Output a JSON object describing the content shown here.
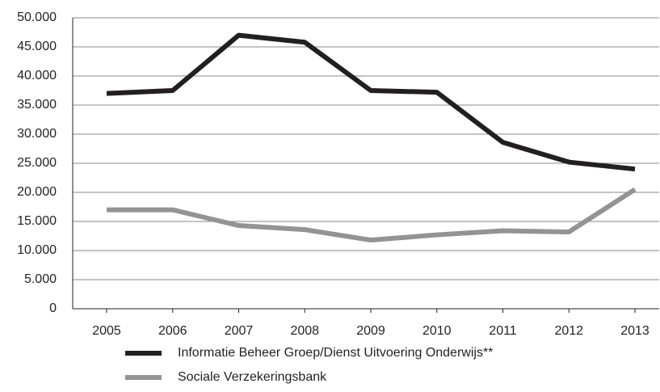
{
  "chart_data": {
    "type": "line",
    "categories": [
      "2005",
      "2006",
      "2007",
      "2008",
      "2009",
      "2010",
      "2011",
      "2012",
      "2013"
    ],
    "series": [
      {
        "name": "Informatie Beheer Groep/Dienst Uitvoering Onderwijs**",
        "color": "#231f20",
        "values": [
          37000,
          37500,
          47000,
          45800,
          37500,
          37200,
          28600,
          25200,
          24000
        ]
      },
      {
        "name": "Sociale Verzekeringsbank",
        "color": "#939393",
        "values": [
          17000,
          17000,
          14300,
          13600,
          11800,
          12700,
          13400,
          13200,
          20500
        ]
      }
    ],
    "ylim": [
      0,
      50000
    ],
    "yticks": [
      0,
      {
        "value": 5000,
        "label": "5.000"
      },
      {
        "value": 10000,
        "label": "10.000"
      },
      {
        "value": 15000,
        "label": "15.000"
      },
      {
        "value": 20000,
        "label": "20.000"
      },
      {
        "value": 25000,
        "label": "25.000"
      },
      {
        "value": 30000,
        "label": "30.000"
      },
      {
        "value": 35000,
        "label": "35.000"
      },
      {
        "value": 40000,
        "label": "40.000"
      },
      {
        "value": 45000,
        "label": "45.000"
      },
      {
        "value": 50000,
        "label": "50.000"
      }
    ],
    "grid": true,
    "legend": "bottom"
  }
}
